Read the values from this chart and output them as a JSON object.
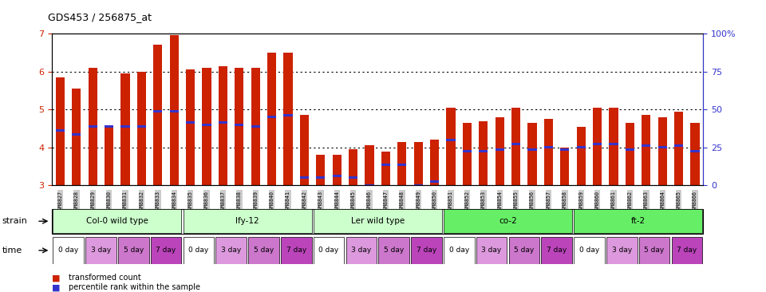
{
  "title": "GDS453 / 256875_at",
  "gsm_labels": [
    "GSM8827",
    "GSM8828",
    "GSM8829",
    "GSM8830",
    "GSM8831",
    "GSM8832",
    "GSM8833",
    "GSM8834",
    "GSM8835",
    "GSM8836",
    "GSM8837",
    "GSM8838",
    "GSM8839",
    "GSM8840",
    "GSM8841",
    "GSM8842",
    "GSM8843",
    "GSM8844",
    "GSM8845",
    "GSM8846",
    "GSM8847",
    "GSM8848",
    "GSM8849",
    "GSM8850",
    "GSM8851",
    "GSM8852",
    "GSM8853",
    "GSM8854",
    "GSM8855",
    "GSM8856",
    "GSM8857",
    "GSM8858",
    "GSM8859",
    "GSM8860",
    "GSM8861",
    "GSM8862",
    "GSM8863",
    "GSM8864",
    "GSM8865",
    "GSM8866"
  ],
  "bar_values": [
    5.85,
    5.55,
    6.1,
    4.55,
    5.95,
    6.0,
    6.7,
    6.95,
    6.05,
    6.1,
    6.15,
    6.1,
    6.1,
    6.5,
    6.5,
    4.85,
    3.8,
    3.8,
    3.95,
    4.05,
    3.9,
    4.15,
    4.15,
    4.2,
    5.05,
    4.65,
    4.7,
    4.8,
    5.05,
    4.65,
    4.75,
    4.0,
    4.55,
    5.05,
    5.05,
    4.65,
    4.85,
    4.8,
    4.95,
    4.65
  ],
  "blue_marker_values": [
    4.45,
    4.35,
    4.55,
    4.55,
    4.55,
    4.55,
    4.95,
    4.95,
    4.65,
    4.6,
    4.65,
    4.6,
    4.55,
    4.8,
    4.85,
    3.2,
    3.2,
    3.25,
    3.2,
    3.0,
    3.55,
    3.55,
    3.0,
    3.1,
    4.2,
    3.9,
    3.9,
    3.95,
    4.1,
    3.95,
    4.0,
    3.95,
    4.0,
    4.1,
    4.1,
    3.95,
    4.05,
    4.0,
    4.05,
    3.9
  ],
  "strains": [
    {
      "label": "Col-0 wild type",
      "start": 0,
      "end": 8,
      "color": "#ccffcc"
    },
    {
      "label": "lfy-12",
      "start": 8,
      "end": 16,
      "color": "#ccffcc"
    },
    {
      "label": "Ler wild type",
      "start": 16,
      "end": 24,
      "color": "#ccffcc"
    },
    {
      "label": "co-2",
      "start": 24,
      "end": 32,
      "color": "#66ee66"
    },
    {
      "label": "ft-2",
      "start": 32,
      "end": 40,
      "color": "#66ee66"
    }
  ],
  "time_labels": [
    "0 day",
    "3 day",
    "5 day",
    "7 day"
  ],
  "time_colors": [
    "#ffffff",
    "#dd99dd",
    "#cc77cc",
    "#bb44bb"
  ],
  "ylim_left": [
    3,
    7
  ],
  "ylim_right": [
    0,
    100
  ],
  "yticks_left": [
    3,
    4,
    5,
    6,
    7
  ],
  "yticks_right": [
    0,
    25,
    50,
    75,
    100
  ],
  "bar_color": "#cc2200",
  "blue_color": "#3333cc",
  "grid_color": "#000000",
  "tick_label_color_left": "#cc2200",
  "tick_label_color_right": "#3333cc",
  "xtick_bg_color": "#cccccc",
  "n_bars": 40,
  "n_groups": 5,
  "bars_per_group": 8,
  "days_per_group": 4,
  "bars_per_day": 2
}
